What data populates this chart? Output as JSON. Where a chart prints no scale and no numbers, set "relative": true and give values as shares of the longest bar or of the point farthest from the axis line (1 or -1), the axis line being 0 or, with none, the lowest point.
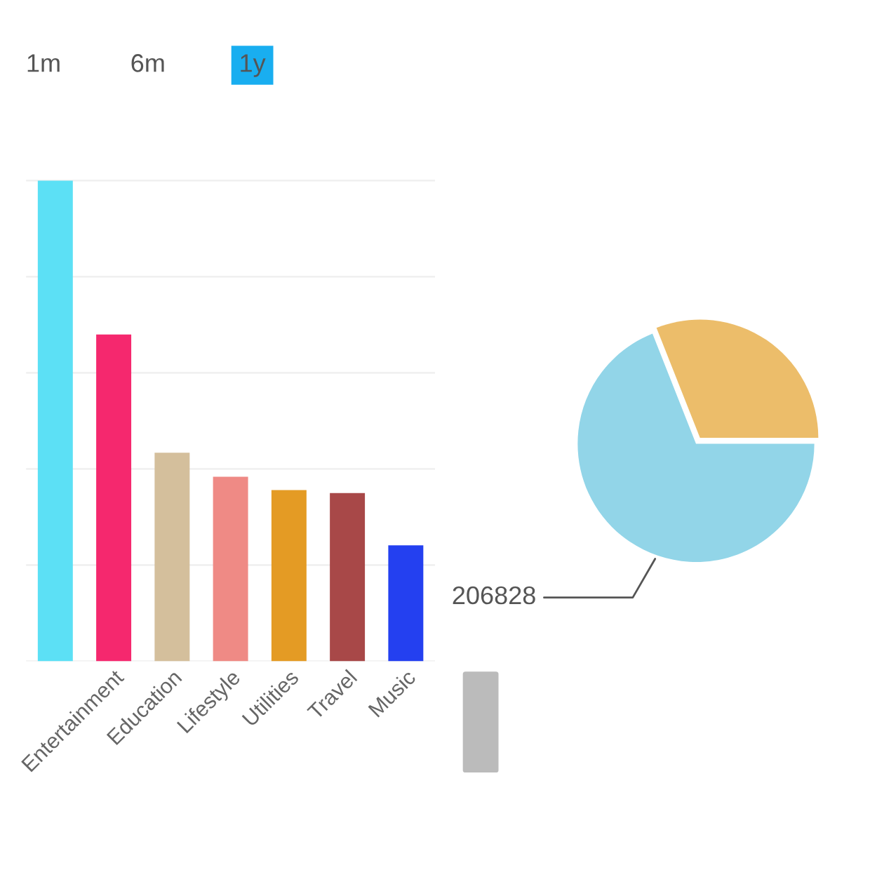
{
  "chart_data": [
    {
      "type": "bar",
      "categories": [
        null,
        "Entertainment",
        "Education",
        "Lifestyle",
        "Utilities",
        "Travel",
        "Music"
      ],
      "values": [
        1,
        0.68,
        0.434,
        0.384,
        0.356,
        0.35,
        0.241
      ],
      "colors": [
        "#5ce0f5",
        "#f5286e",
        "#d4bf9c",
        "#ef8a85",
        "#e49b24",
        "#a84848",
        "#2440f0"
      ],
      "relative": true,
      "grid": "y",
      "annotations": [
        "1m",
        "6m",
        "1y"
      ]
    },
    {
      "type": "pie",
      "categories": [
        null,
        null
      ],
      "values": [
        92900,
        206828
      ],
      "colors": [
        "#ecbd6a",
        "#92d5e8"
      ],
      "value_labels": [
        null,
        "206828"
      ]
    }
  ]
}
